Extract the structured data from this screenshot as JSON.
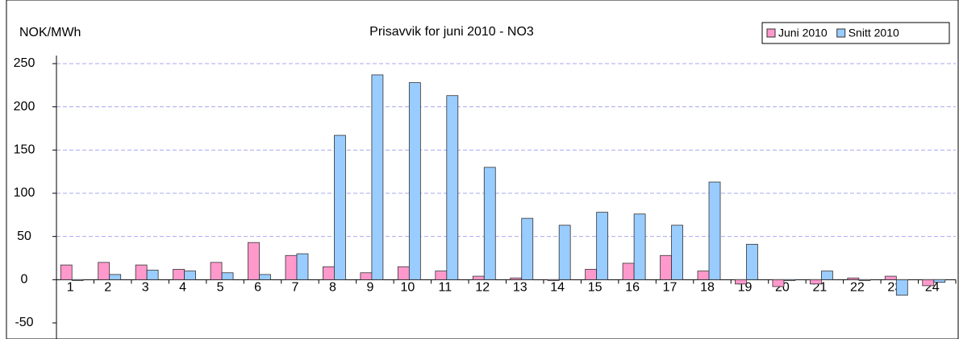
{
  "chart_data": {
    "type": "bar",
    "title": "Prisavvik for juni 2010 - NO3",
    "y_label": "NOK/MWh",
    "categories": [
      "1",
      "2",
      "3",
      "4",
      "5",
      "6",
      "7",
      "8",
      "9",
      "10",
      "11",
      "12",
      "13",
      "14",
      "15",
      "16",
      "17",
      "18",
      "19",
      "20",
      "21",
      "22",
      "23",
      "24"
    ],
    "series": [
      {
        "name": "Juni 2010",
        "color": "#ff99cc",
        "values": [
          17,
          20,
          17,
          12,
          20,
          43,
          28,
          15,
          8,
          15,
          10,
          4,
          2,
          -1,
          12,
          19,
          28,
          10,
          -5,
          -8,
          -5,
          2,
          4,
          -7
        ]
      },
      {
        "name": "Snitt 2010",
        "color": "#99ccff",
        "values": [
          -1,
          6,
          11,
          10,
          8,
          6,
          30,
          167,
          237,
          228,
          213,
          130,
          71,
          63,
          78,
          76,
          63,
          113,
          41,
          -1,
          10,
          -1,
          -18,
          -3
        ]
      }
    ],
    "ylim": [
      -50,
      250
    ],
    "yticks": [
      -50,
      0,
      50,
      100,
      150,
      200,
      250
    ],
    "grid": true,
    "legend": "top-right"
  }
}
